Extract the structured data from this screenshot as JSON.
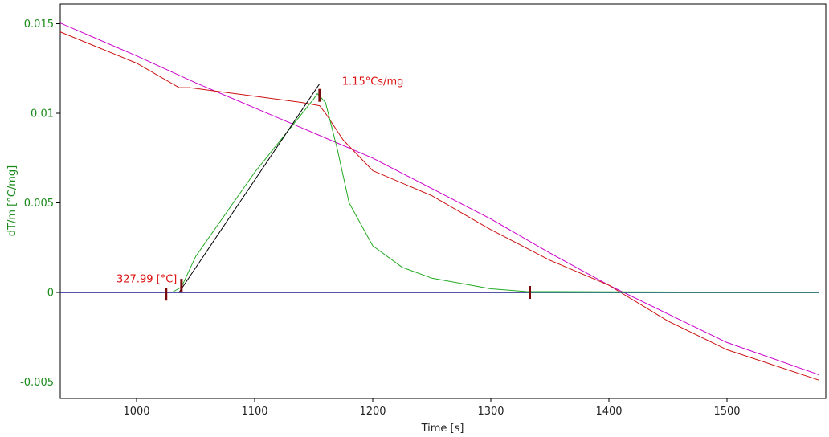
{
  "chart_data": {
    "type": "line",
    "xlabel": "Time [s]",
    "ylabel": "dT/m  [°C/mg]",
    "xlim": [
      935,
      1580
    ],
    "ylim": [
      -0.006,
      0.0163
    ],
    "x_ticks": [
      1000,
      1100,
      1200,
      1300,
      1400,
      1500
    ],
    "x_tick_labels": [
      "1000",
      "1100",
      "1200",
      "1300",
      "1400",
      "1500"
    ],
    "y_ticks": [
      -0.005,
      0,
      0.005,
      0.01,
      0.015
    ],
    "y_tick_labels": [
      "-0.005",
      "0",
      "0.005",
      "0.01",
      "0.015"
    ],
    "grid": false,
    "series": [
      {
        "color": "#cc00cc",
        "points": [
          [
            935,
            0.01505
          ],
          [
            1000,
            0.0132
          ],
          [
            1050,
            0.0117
          ],
          [
            1100,
            0.0103
          ],
          [
            1150,
            0.0089
          ],
          [
            1200,
            0.0075
          ],
          [
            1250,
            0.0058
          ],
          [
            1300,
            0.0041
          ],
          [
            1350,
            0.0022
          ],
          [
            1400,
            0.0004
          ],
          [
            1450,
            -0.0012
          ],
          [
            1500,
            -0.0028
          ],
          [
            1578,
            -0.0046
          ]
        ]
      },
      {
        "color": "#cc1111",
        "points": [
          [
            935,
            0.01455
          ],
          [
            1000,
            0.0128
          ],
          [
            1036,
            0.01143
          ],
          [
            1045,
            0.01143
          ],
          [
            1100,
            0.01095
          ],
          [
            1140,
            0.0106
          ],
          [
            1155,
            0.01042
          ],
          [
            1160,
            0.01
          ],
          [
            1175,
            0.0085
          ],
          [
            1200,
            0.0068
          ],
          [
            1250,
            0.0054
          ],
          [
            1300,
            0.0035
          ],
          [
            1350,
            0.0018
          ],
          [
            1400,
            0.0004
          ],
          [
            1450,
            -0.0016
          ],
          [
            1500,
            -0.0032
          ],
          [
            1578,
            -0.0049
          ]
        ]
      },
      {
        "color": "#22aa22",
        "points": [
          [
            935,
            0.0
          ],
          [
            1030,
            0.0
          ],
          [
            1038,
            0.0003
          ],
          [
            1050,
            0.002
          ],
          [
            1100,
            0.0067
          ],
          [
            1150,
            0.0108
          ],
          [
            1153,
            0.0111
          ],
          [
            1160,
            0.0106
          ],
          [
            1170,
            0.008
          ],
          [
            1180,
            0.005
          ],
          [
            1200,
            0.0026
          ],
          [
            1225,
            0.0014
          ],
          [
            1250,
            0.0008
          ],
          [
            1300,
            0.0002
          ],
          [
            1330,
            5e-05
          ],
          [
            1578,
            0.0
          ]
        ]
      },
      {
        "color": "#000000",
        "points": [
          [
            1036,
            0.0
          ],
          [
            1155,
            0.01165
          ]
        ]
      },
      {
        "color": "#1a1a8c",
        "points": [
          [
            935,
            0.0
          ],
          [
            1578,
            0.0
          ]
        ]
      },
      {
        "color": "#1a7a6a",
        "points": [
          [
            1330,
            0.0
          ],
          [
            1578,
            0.0
          ]
        ]
      }
    ],
    "markers": [
      {
        "x": 1025,
        "y": -0.0001
      },
      {
        "x": 1038,
        "y": 0.0004
      },
      {
        "x": 1155,
        "y": 0.011
      },
      {
        "x": 1333,
        "y": 0.0
      }
    ],
    "annotations": [
      {
        "text": "1.15°Cs/mg",
        "x": 1174,
        "y": 0.0116
      },
      {
        "text": "327.99 [°C]",
        "x": 983,
        "y": 0.00055
      }
    ]
  }
}
